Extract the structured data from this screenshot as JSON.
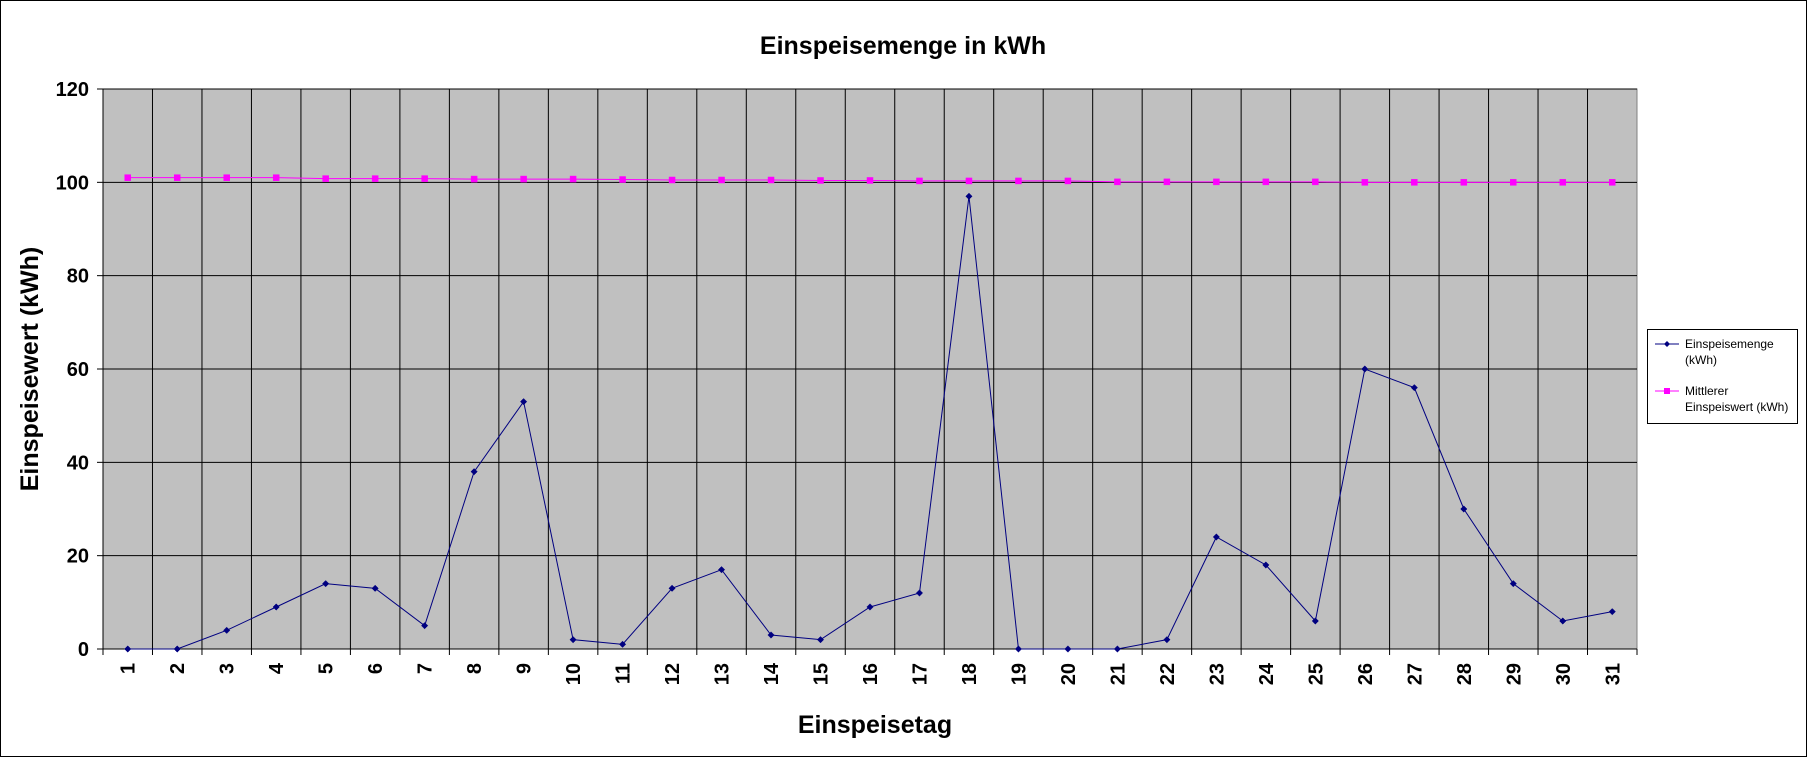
{
  "chart_data": {
    "type": "line",
    "title": "Einspeisemenge in kWh",
    "xlabel": "Einspeisetag",
    "ylabel": "Einspeisewert  (kWh)",
    "ylim": [
      0,
      120
    ],
    "yticks": [
      "0",
      "20",
      "40",
      "60",
      "80",
      "100",
      "120"
    ],
    "categories": [
      "1",
      "2",
      "3",
      "4",
      "5",
      "6",
      "7",
      "8",
      "9",
      "10",
      "11",
      "12",
      "13",
      "14",
      "15",
      "16",
      "17",
      "18",
      "19",
      "20",
      "21",
      "22",
      "23",
      "24",
      "25",
      "26",
      "27",
      "28",
      "29",
      "30",
      "31"
    ],
    "grid": true,
    "legend_position": "right",
    "series": [
      {
        "name_lines": [
          "Einspeisemenge",
          "(kWh)"
        ],
        "color": "#000080",
        "marker": "diamond",
        "values": [
          0,
          0,
          4,
          9,
          14,
          13,
          5,
          38,
          53,
          2,
          1,
          13,
          17,
          3,
          2,
          9,
          12,
          97,
          0,
          0,
          0,
          2,
          24,
          18,
          6,
          60,
          56,
          30,
          14,
          6,
          8
        ]
      },
      {
        "name_lines": [
          "Mittlerer",
          "Einspeiswert (kWh)"
        ],
        "color": "#FF00FF",
        "marker": "square",
        "values": [
          101,
          101,
          101,
          101,
          100.8,
          100.8,
          100.8,
          100.7,
          100.7,
          100.7,
          100.6,
          100.5,
          100.5,
          100.5,
          100.4,
          100.4,
          100.3,
          100.3,
          100.3,
          100.3,
          100.1,
          100.1,
          100.1,
          100.1,
          100.1,
          100,
          100,
          100,
          100,
          100,
          100
        ]
      }
    ],
    "colors": {
      "plot_background": "#C0C0C0",
      "grid": "#000000"
    }
  }
}
